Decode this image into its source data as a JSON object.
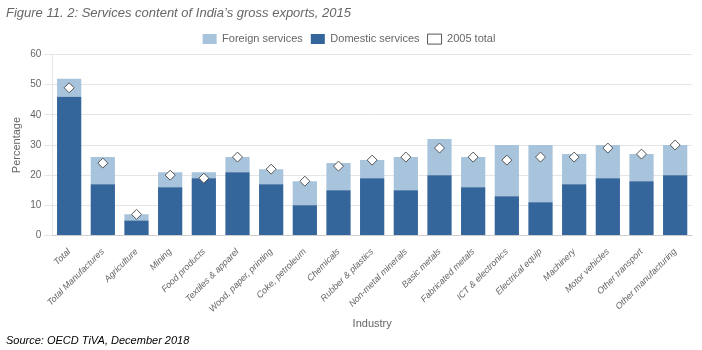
{
  "chart_data": {
    "type": "bar",
    "title": "Figure 11. 2: Services content of India’s gross exports, 2015",
    "source": "Source: OECD TiVA, December 2018",
    "xlabel": "Industry",
    "ylabel": "Percentage",
    "categories": [
      "Total",
      "Total Manufactures",
      "Agriculture",
      "Mining",
      "Food products",
      "Textiles & apparel",
      "Wood, paper, printing",
      "Coke, petroleum",
      "Chemicals",
      "Rubber & plastics",
      "Non-metal minerals",
      "Basic metals",
      "Fabricated metals",
      "ICT & electronics",
      "Electrical equip",
      "Machinery",
      "Motor vehicles",
      "Other transport",
      "Other manufacturing"
    ],
    "series": [
      {
        "name": "Domestic services",
        "color": "#34659b",
        "values": [
          46,
          17,
          5,
          16,
          19,
          21,
          17,
          10,
          15,
          19,
          15,
          20,
          16,
          13,
          11,
          17,
          19,
          18,
          20
        ]
      },
      {
        "name": "Foreign services",
        "color": "#a8c4dc",
        "values": [
          6,
          9,
          2,
          5,
          2,
          5,
          5,
          8,
          9,
          6,
          11,
          12,
          10,
          17,
          19,
          10,
          11,
          9,
          10
        ]
      },
      {
        "name": "2005 total",
        "type": "scatter",
        "marker": "diamond",
        "color": "#ffffff",
        "values": [
          49,
          24,
          7,
          20,
          19,
          26,
          22,
          18,
          23,
          25,
          26,
          29,
          26,
          25,
          26,
          26,
          29,
          27,
          30
        ]
      }
    ],
    "stacked": true,
    "ylim": [
      0,
      60
    ],
    "yticks": [
      0,
      10,
      20,
      30,
      40,
      50,
      60
    ],
    "grid": true,
    "legend": "top"
  }
}
